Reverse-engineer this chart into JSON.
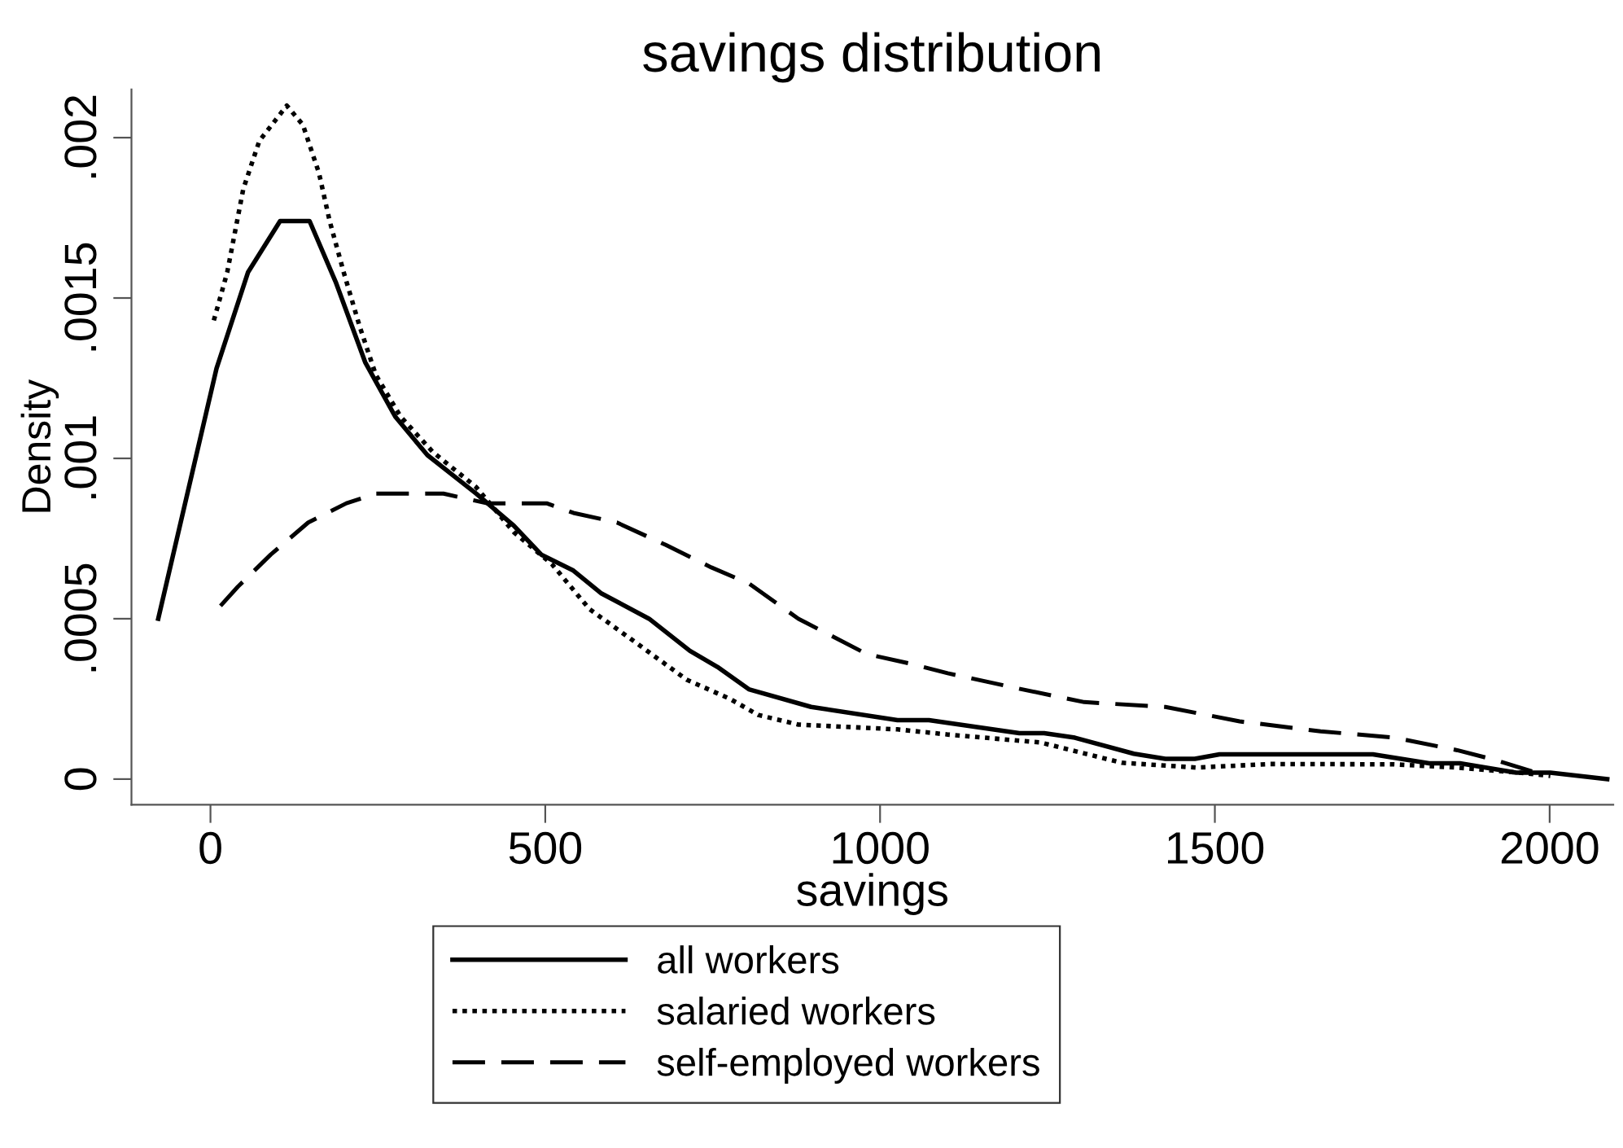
{
  "chart_data": {
    "type": "line",
    "title": "savings distribution",
    "xlabel": "savings",
    "ylabel": "Density",
    "xlim": [
      -118,
      2095
    ],
    "ylim": [
      -8e-05,
      0.00215
    ],
    "xticks": [
      0,
      500,
      1000,
      1500,
      2000
    ],
    "yticks": [
      0,
      {
        "value": 0.0005,
        "label": ".0005"
      },
      {
        "value": 0.001,
        "label": ".001"
      },
      {
        "value": 0.0015,
        "label": ".0015"
      },
      {
        "value": 0.002,
        "label": ".002"
      }
    ],
    "grid": false,
    "legend": "bottom",
    "marker": "none",
    "series": [
      {
        "name": "all workers",
        "color": "#000000",
        "line_style": "solid",
        "x": [
          -78,
          9,
          56,
          104,
          148,
          187,
          231,
          276,
          324,
          397,
          453,
          494,
          542,
          583,
          655,
          716,
          757,
          804,
          897,
          1026,
          1073,
          1208,
          1245,
          1291,
          1379,
          1426,
          1470,
          1507,
          1736,
          1820,
          1866,
          1950,
          2001,
          2086
        ],
        "values": [
          0.0005,
          0.00128,
          0.00158,
          0.00174,
          0.00174,
          0.00155,
          0.0013,
          0.00113,
          0.00101,
          0.00089,
          0.00079,
          0.0007,
          0.00065,
          0.00058,
          0.0005,
          0.0004,
          0.00035,
          0.00028,
          0.000225,
          0.000184,
          0.000184,
          0.000143,
          0.000143,
          0.000129,
          7.9e-05,
          6.3e-05,
          6.3e-05,
          7.7e-05,
          7.7e-05,
          4.9e-05,
          4.9e-05,
          2e-05,
          2e-05,
          0
        ]
      },
      {
        "name": "salaried workers",
        "color": "#000000",
        "line_style": "dotted",
        "x": [
          5,
          25,
          49,
          73,
          114,
          138,
          162,
          178,
          199,
          223,
          247,
          284,
          332,
          397,
          453,
          510,
          566,
          639,
          711,
          776,
          818,
          878,
          1026,
          1101,
          1240,
          1305,
          1361,
          1472,
          1583,
          1768,
          1862,
          1955,
          2001
        ],
        "values": [
          0.00143,
          0.00158,
          0.00184,
          0.00199,
          0.0021,
          0.00204,
          0.00189,
          0.00174,
          0.00158,
          0.00141,
          0.00126,
          0.00113,
          0.00102,
          0.00091,
          0.00077,
          0.00067,
          0.00053,
          0.00042,
          0.00031,
          0.00025,
          0.0002,
          0.00017,
          0.000155,
          0.000139,
          0.000114,
          8e-05,
          5.1e-05,
          3.6e-05,
          4.7e-05,
          4.6e-05,
          3.6e-05,
          2e-05,
          1e-05
        ]
      },
      {
        "name": "self-employed workers",
        "color": "#000000",
        "line_style": "dashed",
        "x": [
          15,
          41,
          90,
          146,
          203,
          247,
          348,
          413,
          502,
          542,
          607,
          680,
          748,
          804,
          878,
          980,
          1045,
          1101,
          1212,
          1305,
          1426,
          1537,
          1658,
          1769,
          1862,
          1918,
          1996
        ],
        "values": [
          0.00054,
          0.0006,
          0.0007,
          0.0008,
          0.00086,
          0.00089,
          0.00089,
          0.00086,
          0.00086,
          0.00083,
          0.0008,
          0.00073,
          0.00066,
          0.00061,
          0.0005,
          0.00039,
          0.00036,
          0.00033,
          0.00028,
          0.00024,
          0.000225,
          0.00018,
          0.000149,
          0.000129,
          9e-05,
          6e-05,
          1e-05
        ]
      }
    ]
  }
}
